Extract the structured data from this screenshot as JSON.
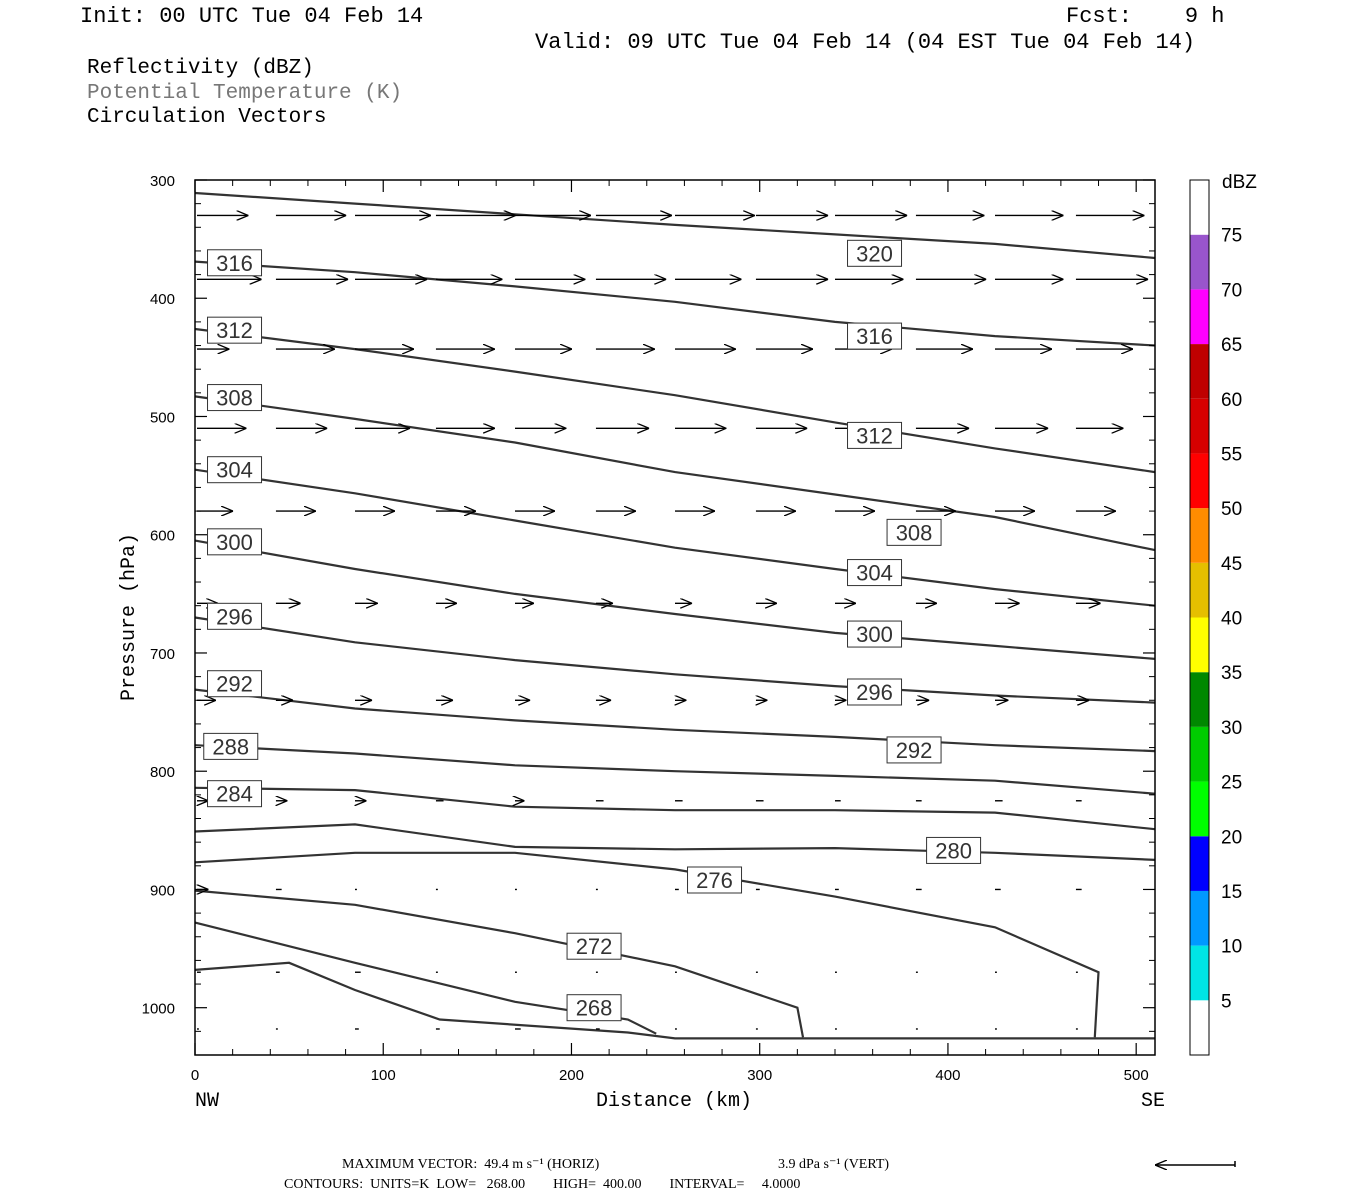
{
  "header": {
    "init": "Init: 00 UTC Tue 04 Feb 14",
    "fcst": "Fcst:    9 h",
    "valid": "Valid: 09 UTC Tue 04 Feb 14 (04 EST Tue 04 Feb 14)",
    "fields": [
      "Reflectivity (dBZ)",
      "Potential Temperature (K)",
      "Circulation Vectors"
    ]
  },
  "footer": {
    "max_vector_horiz": "MAXIMUM VECTOR:  49.4 m s⁻¹ (HORIZ)",
    "max_vector_vert": "3.9 dPa s⁻¹ (VERT)",
    "contours": "CONTOURS:  UNITS=K  LOW=   268.00        HIGH=  400.00        INTERVAL=     4.0000"
  },
  "colors": {
    "contour": "#333333",
    "vector": "#000000",
    "colorbar": [
      "#ffffff",
      "#00e5e5",
      "#0099ff",
      "#0000ff",
      "#00ff00",
      "#00cc00",
      "#008800",
      "#ffff00",
      "#e5bf00",
      "#ff8c00",
      "#ff0000",
      "#d60000",
      "#bf0000",
      "#ff00ff",
      "#9955cc",
      "#ffffff"
    ]
  },
  "chart_data": {
    "type": "cross-section",
    "xlabel": "Distance (km)",
    "ylabel": "Pressure (hPa)",
    "xlim": [
      0,
      510
    ],
    "ylim": [
      300,
      1040
    ],
    "y_inverted": true,
    "x_ticks": [
      0,
      100,
      200,
      300,
      400,
      500
    ],
    "y_ticks": [
      300,
      400,
      500,
      600,
      700,
      800,
      900,
      1000
    ],
    "x_end_labels": {
      "left": "NW",
      "right": "SE"
    },
    "colorbar": {
      "title": "dBZ",
      "labels": [
        5,
        10,
        15,
        20,
        25,
        30,
        35,
        40,
        45,
        50,
        55,
        60,
        65,
        70,
        75
      ]
    },
    "contours": [
      {
        "level": 320,
        "label": "320",
        "points": [
          [
            0,
            311
          ],
          [
            85,
            320
          ],
          [
            170,
            329
          ],
          [
            255,
            338
          ],
          [
            340,
            346
          ],
          [
            425,
            354
          ],
          [
            510,
            366
          ]
        ],
        "label_at": [
          361,
          362
        ]
      },
      {
        "level": 316,
        "label": "316",
        "points": [
          [
            0,
            369
          ],
          [
            85,
            378
          ],
          [
            170,
            390
          ],
          [
            255,
            403
          ],
          [
            340,
            420
          ],
          [
            425,
            432
          ],
          [
            510,
            440
          ]
        ],
        "labels_at": [
          [
            21,
            370
          ],
          [
            361,
            432
          ]
        ]
      },
      {
        "level": 312,
        "label": "312",
        "points": [
          [
            0,
            426
          ],
          [
            85,
            443
          ],
          [
            170,
            462
          ],
          [
            255,
            482
          ],
          [
            340,
            505
          ],
          [
            425,
            527
          ],
          [
            510,
            547
          ]
        ],
        "labels_at": [
          [
            21,
            427
          ],
          [
            361,
            516
          ]
        ]
      },
      {
        "level": 308,
        "label": "308",
        "points": [
          [
            0,
            483
          ],
          [
            85,
            502
          ],
          [
            170,
            522
          ],
          [
            255,
            547
          ],
          [
            340,
            566
          ],
          [
            425,
            585
          ],
          [
            510,
            613
          ]
        ],
        "labels_at": [
          [
            21,
            484
          ],
          [
            382,
            598
          ]
        ]
      },
      {
        "level": 304,
        "label": "304",
        "points": [
          [
            0,
            545
          ],
          [
            85,
            565
          ],
          [
            170,
            588
          ],
          [
            255,
            611
          ],
          [
            340,
            629
          ],
          [
            425,
            646
          ],
          [
            510,
            660
          ]
        ],
        "labels_at": [
          [
            21,
            545
          ],
          [
            361,
            632
          ]
        ]
      },
      {
        "level": 300,
        "label": "300",
        "points": [
          [
            0,
            605
          ],
          [
            85,
            629
          ],
          [
            170,
            650
          ],
          [
            255,
            667
          ],
          [
            340,
            683
          ],
          [
            425,
            694
          ],
          [
            510,
            705
          ]
        ],
        "labels_at": [
          [
            21,
            606
          ],
          [
            361,
            684
          ]
        ]
      },
      {
        "level": 296,
        "label": "296",
        "points": [
          [
            0,
            670
          ],
          [
            85,
            691
          ],
          [
            170,
            706
          ],
          [
            255,
            718
          ],
          [
            340,
            728
          ],
          [
            425,
            736
          ],
          [
            510,
            742
          ]
        ],
        "labels_at": [
          [
            21,
            669
          ],
          [
            361,
            733
          ]
        ]
      },
      {
        "level": 292,
        "label": "292",
        "points": [
          [
            0,
            731
          ],
          [
            85,
            747
          ],
          [
            170,
            757
          ],
          [
            255,
            765
          ],
          [
            340,
            771
          ],
          [
            425,
            778
          ],
          [
            510,
            783
          ]
        ],
        "labels_at": [
          [
            21,
            726
          ],
          [
            382,
            782
          ]
        ]
      },
      {
        "level": 288,
        "label": "288",
        "points": [
          [
            0,
            778
          ],
          [
            85,
            785
          ],
          [
            170,
            795
          ],
          [
            255,
            800
          ],
          [
            340,
            804
          ],
          [
            425,
            808
          ],
          [
            510,
            819
          ]
        ],
        "label_at": [
          19,
          779
        ]
      },
      {
        "level": 284,
        "label": "284",
        "points": [
          [
            0,
            814
          ],
          [
            85,
            816
          ],
          [
            170,
            830
          ],
          [
            255,
            833
          ],
          [
            340,
            833
          ],
          [
            425,
            835
          ],
          [
            510,
            849
          ]
        ],
        "label_at": [
          21,
          819
        ]
      },
      {
        "level": 280,
        "label": "280",
        "points": [
          [
            0,
            851
          ],
          [
            85,
            845
          ],
          [
            170,
            864
          ],
          [
            255,
            866
          ],
          [
            340,
            865
          ],
          [
            425,
            869
          ],
          [
            510,
            875
          ]
        ],
        "label_at": [
          403,
          867
        ]
      },
      {
        "level": 276,
        "label": "276",
        "points": [
          [
            0,
            877
          ],
          [
            85,
            869
          ],
          [
            170,
            869
          ],
          [
            255,
            883
          ],
          [
            340,
            906
          ],
          [
            425,
            932
          ],
          [
            480,
            970
          ],
          [
            478,
            1025
          ]
        ],
        "label_at": [
          276,
          892
        ]
      },
      {
        "level": 272,
        "label": "272",
        "points": [
          [
            0,
            901
          ],
          [
            85,
            913
          ],
          [
            170,
            937
          ],
          [
            255,
            965
          ],
          [
            320,
            1000
          ],
          [
            323,
            1025
          ]
        ],
        "label_at": [
          212,
          948
        ]
      },
      {
        "level": 268,
        "label": "268",
        "points": [
          [
            0,
            928
          ],
          [
            85,
            962
          ],
          [
            170,
            995
          ],
          [
            230,
            1010
          ],
          [
            245,
            1022
          ]
        ],
        "label_at": [
          212,
          1000
        ]
      },
      {
        "level": 0,
        "label": "",
        "points": [
          [
            0,
            968
          ],
          [
            50,
            962
          ],
          [
            85,
            985
          ],
          [
            130,
            1010
          ],
          [
            230,
            1021
          ],
          [
            255,
            1026
          ],
          [
            510,
            1026
          ]
        ]
      }
    ],
    "vectors": [
      {
        "p": 330,
        "x": [
          0,
          43,
          85,
          128,
          170,
          213,
          255,
          298,
          340,
          383,
          425,
          468
        ],
        "u": [
          27,
          37,
          40,
          42,
          40,
          40,
          42,
          38,
          38,
          36,
          36,
          36
        ]
      },
      {
        "p": 384,
        "x": [
          0,
          43,
          85,
          128,
          170,
          213,
          255,
          298,
          340,
          383,
          425,
          468
        ],
        "u": [
          34,
          38,
          38,
          35,
          37,
          37,
          35,
          38,
          36,
          37,
          36,
          38
        ]
      },
      {
        "p": 443,
        "x": [
          0,
          43,
          85,
          128,
          170,
          213,
          255,
          298,
          340,
          383,
          425,
          468
        ],
        "u": [
          17,
          31,
          31,
          31,
          30,
          31,
          32,
          30,
          30,
          30,
          30,
          30
        ]
      },
      {
        "p": 510,
        "x": [
          0,
          43,
          85,
          128,
          170,
          213,
          255,
          298,
          340,
          383,
          425,
          468
        ],
        "u": [
          26,
          27,
          29,
          31,
          27,
          28,
          27,
          27,
          27,
          28,
          28,
          25
        ]
      },
      {
        "p": 580,
        "x": [
          0,
          43,
          85,
          128,
          170,
          213,
          255,
          298,
          340,
          383,
          425,
          468
        ],
        "u": [
          19,
          21,
          21,
          21,
          21,
          21,
          21,
          21,
          21,
          21,
          21,
          21
        ]
      },
      {
        "p": 658,
        "x": [
          0,
          43,
          85,
          128,
          170,
          213,
          255,
          298,
          340,
          383,
          425,
          468
        ],
        "u": [
          11,
          13,
          12,
          11,
          10,
          9,
          9,
          11,
          11,
          11,
          13,
          13
        ]
      },
      {
        "p": 740,
        "x": [
          0,
          43,
          85,
          128,
          170,
          213,
          255,
          298,
          340,
          383,
          425,
          468
        ],
        "u": [
          10,
          9,
          9,
          9,
          8,
          8,
          6,
          6,
          6,
          7,
          7,
          7
        ]
      },
      {
        "p": 825,
        "x": [
          0,
          43,
          85,
          128,
          170,
          213,
          255,
          298,
          340,
          383,
          425,
          468
        ],
        "u": [
          6,
          6,
          6,
          4,
          5,
          4,
          4,
          4,
          3,
          3,
          4,
          3
        ]
      },
      {
        "p": 900,
        "x": [
          0,
          43,
          85,
          128,
          170,
          213,
          255,
          298,
          340,
          383,
          425,
          468
        ],
        "u": [
          6,
          3,
          1,
          1,
          1,
          1,
          2,
          2,
          2,
          3,
          3,
          3
        ]
      },
      {
        "p": 970,
        "x": [
          0,
          43,
          85,
          128,
          170,
          213,
          255,
          298,
          340,
          383,
          425,
          468
        ],
        "u": [
          2,
          2,
          3,
          1,
          1,
          1,
          1,
          1,
          1,
          1,
          1,
          1
        ]
      },
      {
        "p": 1018,
        "x": [
          0,
          43,
          85,
          128,
          170,
          213,
          255,
          298,
          340,
          383,
          425,
          468
        ],
        "u": [
          1,
          1,
          2,
          2,
          3,
          2,
          1,
          1,
          1,
          1,
          1,
          1
        ]
      }
    ]
  }
}
